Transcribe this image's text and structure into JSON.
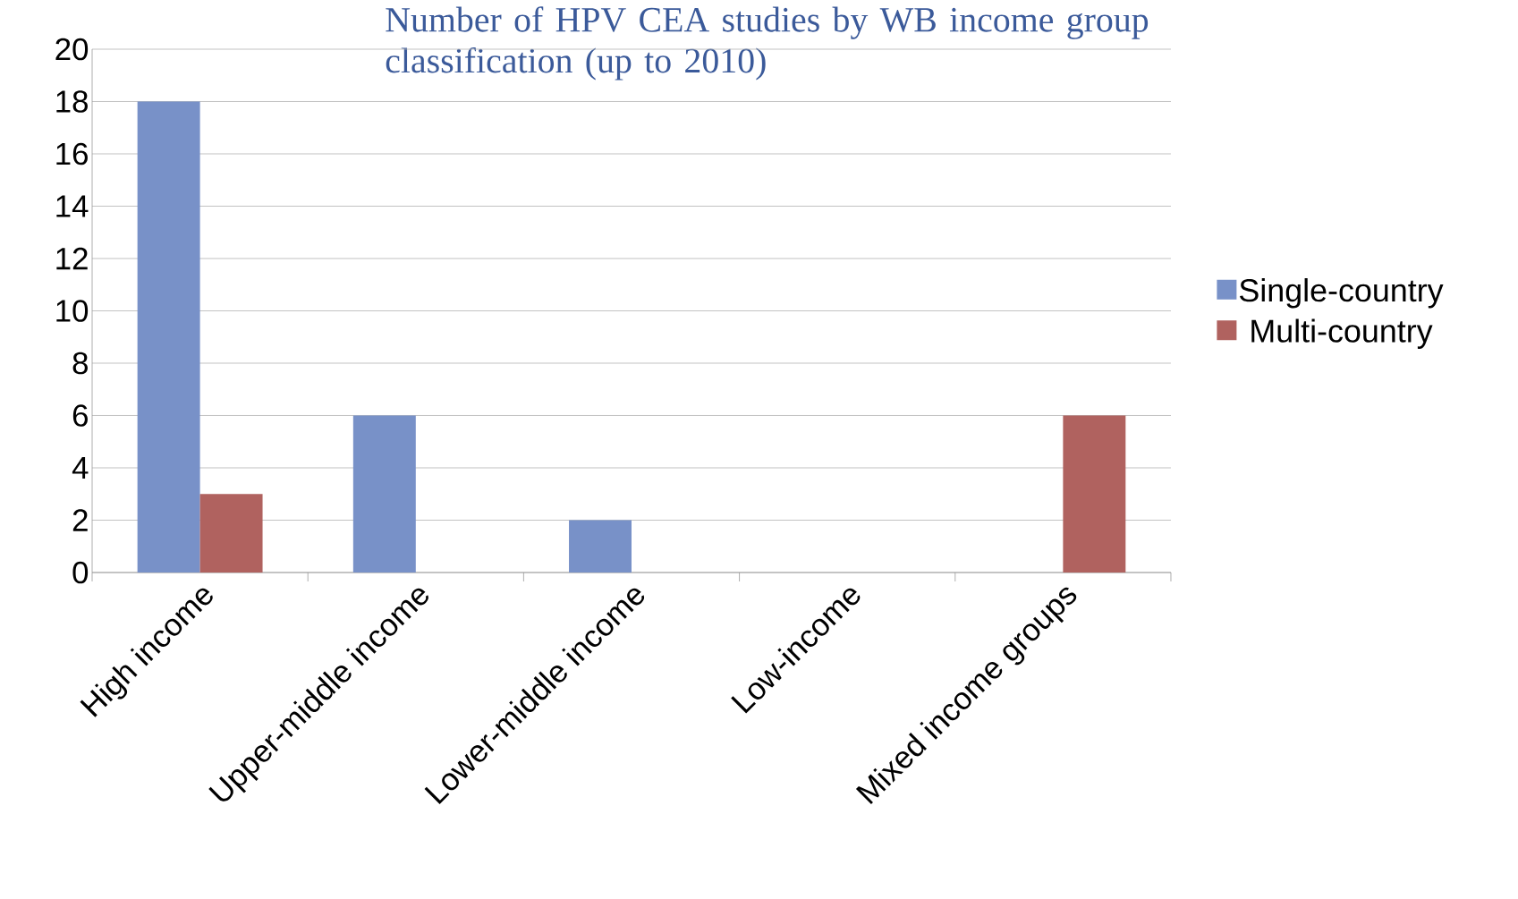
{
  "chart_data": {
    "type": "bar",
    "title": "Number of HPV CEA studies by WB income group classification (up to 2010)",
    "categories": [
      "High income",
      "Upper-middle income",
      "Lower-middle income",
      "Low-income",
      "Mixed income groups"
    ],
    "series": [
      {
        "name": "Single-country",
        "color": "#7891c8",
        "values": [
          18,
          6,
          2,
          0,
          0
        ]
      },
      {
        "name": "Multi-country",
        "color": "#b0625f",
        "values": [
          3,
          0,
          0,
          0,
          6
        ]
      }
    ],
    "ylim": [
      0,
      20
    ],
    "yticks": [
      0,
      2,
      4,
      6,
      8,
      10,
      12,
      14,
      16,
      18,
      20
    ],
    "grid": "y",
    "legend": "right"
  }
}
